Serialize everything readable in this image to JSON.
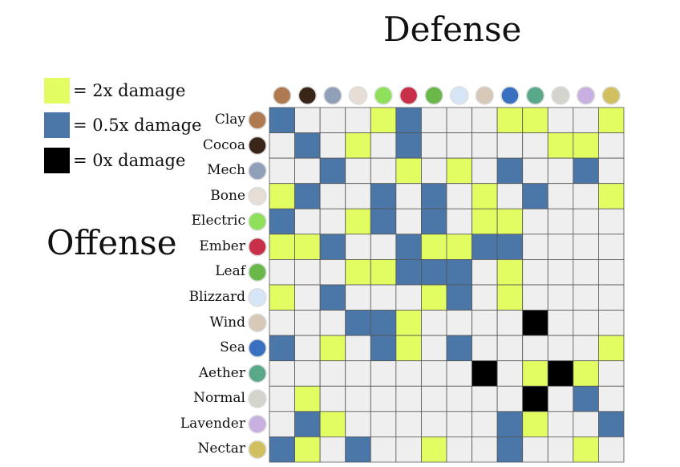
{
  "colors": {
    "2": "#e2fd62",
    "0.5": "#4a76a8",
    "0": "#000000",
    "1": "#efefef",
    "grid": "#333333"
  },
  "legend": [
    {
      "value": "2",
      "label": "= 2x damage"
    },
    {
      "value": "0.5",
      "label": "= 0.5x damage"
    },
    {
      "value": "0",
      "label": "= 0x damage"
    }
  ],
  "chart_data": {
    "type": "heatmap",
    "title": "Defense",
    "ylabel": "Offense",
    "xlabel": "Defense",
    "columns": [
      "Clay",
      "Cocoa",
      "Mech",
      "Bone",
      "Electric",
      "Ember",
      "Leaf",
      "Blizzard",
      "Wind",
      "Sea",
      "Aether",
      "Normal",
      "Lavender",
      "Nectar"
    ],
    "rows": [
      "Clay",
      "Cocoa",
      "Mech",
      "Bone",
      "Electric",
      "Ember",
      "Leaf",
      "Blizzard",
      "Wind",
      "Sea",
      "Aether",
      "Normal",
      "Lavender",
      "Nectar"
    ],
    "icons": {
      "Clay": "clay-pot-icon",
      "Cocoa": "cocoa-drop-icon",
      "Mech": "hex-nut-icon",
      "Bone": "bone-icon",
      "Electric": "lightning-icon",
      "Ember": "flame-icon",
      "Leaf": "leaf-icon",
      "Blizzard": "snowflake-icon",
      "Wind": "wind-icon",
      "Sea": "wave-icon",
      "Aether": "spiral-icon",
      "Normal": "ring-icon",
      "Lavender": "lavender-swirl-icon",
      "Nectar": "nectar-blob-icon"
    },
    "icon_colors": {
      "Clay": "#b07a50",
      "Cocoa": "#3a2618",
      "Mech": "#8fa0b8",
      "Bone": "#e6ded6",
      "Electric": "#8fe05a",
      "Ember": "#c8304a",
      "Leaf": "#6ab84a",
      "Blizzard": "#d6e6f6",
      "Wind": "#d8c8b8",
      "Sea": "#3a70c0",
      "Aether": "#5aa88a",
      "Normal": "#d4d4cc",
      "Lavender": "#c8b0e0",
      "Nectar": "#d0c060"
    },
    "values": [
      [
        0.5,
        1,
        1,
        1,
        2,
        0.5,
        1,
        1,
        1,
        2,
        2,
        1,
        1,
        2
      ],
      [
        1,
        0.5,
        1,
        2,
        1,
        0.5,
        1,
        1,
        1,
        1,
        1,
        2,
        2,
        1
      ],
      [
        1,
        1,
        0.5,
        1,
        1,
        2,
        1,
        2,
        1,
        0.5,
        1,
        1,
        0.5,
        1
      ],
      [
        2,
        0.5,
        1,
        1,
        0.5,
        1,
        0.5,
        1,
        2,
        1,
        0.5,
        1,
        1,
        2
      ],
      [
        0.5,
        1,
        1,
        2,
        0.5,
        1,
        0.5,
        1,
        2,
        2,
        1,
        1,
        1,
        1
      ],
      [
        2,
        2,
        0.5,
        1,
        1,
        0.5,
        2,
        2,
        0.5,
        0.5,
        1,
        1,
        1,
        1
      ],
      [
        1,
        1,
        1,
        2,
        2,
        0.5,
        0.5,
        0.5,
        1,
        2,
        1,
        1,
        1,
        1
      ],
      [
        2,
        1,
        0.5,
        1,
        1,
        1,
        2,
        0.5,
        1,
        2,
        1,
        1,
        1,
        1
      ],
      [
        1,
        1,
        1,
        0.5,
        0.5,
        2,
        1,
        1,
        1,
        1,
        0,
        1,
        1,
        1
      ],
      [
        0.5,
        1,
        2,
        1,
        0.5,
        2,
        1,
        0.5,
        1,
        1,
        1,
        1,
        1,
        2
      ],
      [
        1,
        1,
        1,
        1,
        1,
        1,
        1,
        1,
        0,
        1,
        2,
        0,
        2,
        1
      ],
      [
        1,
        2,
        1,
        1,
        1,
        1,
        1,
        1,
        1,
        1,
        0,
        1,
        0.5,
        1
      ],
      [
        1,
        0.5,
        2,
        1,
        1,
        1,
        1,
        1,
        1,
        0.5,
        2,
        1,
        1,
        0.5
      ],
      [
        0.5,
        2,
        1,
        0.5,
        1,
        1,
        2,
        1,
        1,
        0.5,
        1,
        1,
        2,
        1
      ]
    ]
  }
}
